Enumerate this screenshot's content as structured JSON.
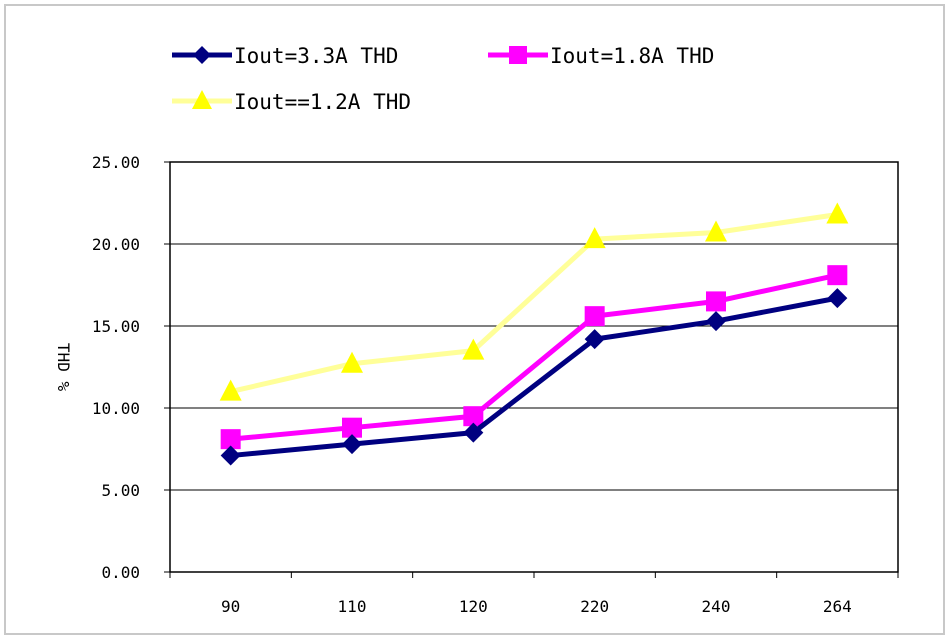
{
  "chart_data": {
    "type": "line",
    "title": "",
    "xlabel": "",
    "ylabel": "THD %",
    "categories": [
      "90",
      "110",
      "120",
      "220",
      "240",
      "264"
    ],
    "ylim": [
      0,
      25
    ],
    "yticks": [
      "0.00",
      "5.00",
      "10.00",
      "15.00",
      "20.00",
      "25.00"
    ],
    "grid": true,
    "legend_position": "top-left",
    "series": [
      {
        "name": "Iout=3.3A THD",
        "values": [
          7.1,
          7.8,
          8.5,
          14.2,
          15.3,
          16.7
        ],
        "color": "#000080",
        "marker": "diamond"
      },
      {
        "name": "Iout=1.8A THD",
        "values": [
          8.1,
          8.8,
          9.5,
          15.6,
          16.5,
          18.1
        ],
        "color": "#ff00ff",
        "marker": "square"
      },
      {
        "name": "Iout==1.2A THD",
        "values": [
          11.0,
          12.7,
          13.5,
          20.3,
          20.7,
          21.8
        ],
        "color": "#ffff99",
        "marker": "triangle",
        "marker_color": "#ffff00"
      }
    ]
  }
}
